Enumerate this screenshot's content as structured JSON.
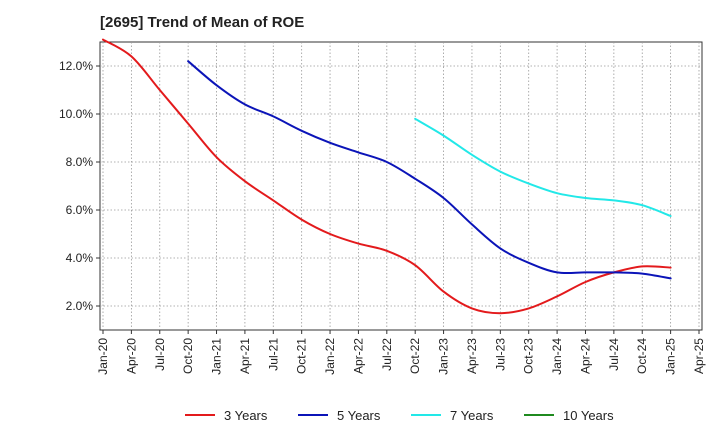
{
  "chart_data": {
    "type": "line",
    "title": "[2695]  Trend of Mean of ROE",
    "x_labels": [
      "Jan-20",
      "Apr-20",
      "Jul-20",
      "Oct-20",
      "Jan-21",
      "Apr-21",
      "Jul-21",
      "Oct-21",
      "Jan-22",
      "Apr-22",
      "Jul-22",
      "Oct-22",
      "Jan-23",
      "Apr-23",
      "Jul-23",
      "Oct-23",
      "Jan-24",
      "Apr-24",
      "Jul-24",
      "Oct-24",
      "Jan-25",
      "Apr-25"
    ],
    "y_ticks": [
      "2.0%",
      "4.0%",
      "6.0%",
      "8.0%",
      "10.0%",
      "12.0%"
    ],
    "ylim": [
      1.0,
      13.0
    ],
    "grid": true,
    "legend_position": "bottom",
    "series": [
      {
        "name": "3 Years",
        "color": "#e31a1c",
        "values": [
          13.1,
          12.4,
          11.0,
          9.6,
          8.2,
          7.2,
          6.4,
          5.6,
          5.0,
          4.6,
          4.3,
          3.7,
          2.6,
          1.9,
          1.7,
          1.9,
          2.4,
          3.0,
          3.4,
          3.65,
          3.6,
          null
        ]
      },
      {
        "name": "5 Years",
        "color": "#0b14b8",
        "values": [
          null,
          null,
          null,
          12.2,
          11.2,
          10.4,
          9.9,
          9.3,
          8.8,
          8.4,
          8.0,
          7.3,
          6.5,
          5.4,
          4.4,
          3.8,
          3.4,
          3.4,
          3.4,
          3.35,
          3.15,
          null
        ]
      },
      {
        "name": "7 Years",
        "color": "#22e8e8",
        "values": [
          null,
          null,
          null,
          null,
          null,
          null,
          null,
          null,
          null,
          null,
          null,
          9.8,
          9.1,
          8.3,
          7.6,
          7.1,
          6.7,
          6.5,
          6.4,
          6.2,
          5.75,
          null
        ]
      },
      {
        "name": "10 Years",
        "color": "#1f8a1f",
        "values": [
          null,
          null,
          null,
          null,
          null,
          null,
          null,
          null,
          null,
          null,
          null,
          null,
          null,
          null,
          null,
          null,
          null,
          null,
          null,
          null,
          null,
          null
        ]
      }
    ]
  }
}
